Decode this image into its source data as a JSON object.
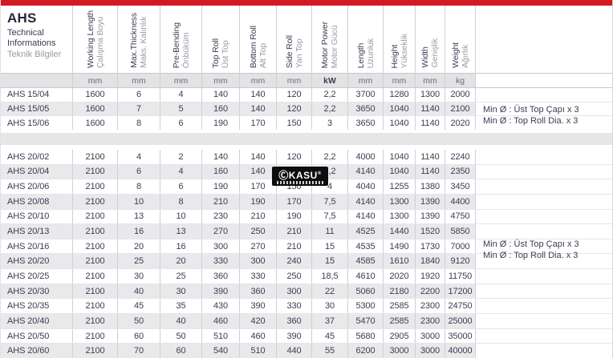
{
  "title": {
    "series": "AHS",
    "subtitle_en": "Technical Informations",
    "subtitle_tr": "Teknik Bilgiler"
  },
  "columns": [
    {
      "en": "Working Length",
      "tr": "Çalışma Boyu",
      "unit": "mm"
    },
    {
      "en": "Max.Thickness",
      "tr": "Maks. Kalınlık",
      "unit": "mm"
    },
    {
      "en": "Pre-Bending",
      "tr": "Önbüküm",
      "unit": "mm"
    },
    {
      "en": "Top Roll",
      "tr": "Üst Top",
      "unit": "mm"
    },
    {
      "en": "Bottom Roll",
      "tr": "Alt Top",
      "unit": "mm"
    },
    {
      "en": "Side Roll",
      "tr": "Yan Top",
      "unit": "mm"
    },
    {
      "en": "Motor Power",
      "tr": "Motor Gücü",
      "unit": "kW"
    },
    {
      "en": "Length",
      "tr": "Uzunluk",
      "unit": "mm"
    },
    {
      "en": "Height",
      "tr": "Yükseklik",
      "unit": "mm"
    },
    {
      "en": "Width",
      "tr": "Genişlik",
      "unit": "mm"
    },
    {
      "en": "Weight",
      "tr": "Ağırlık",
      "unit": "kg"
    }
  ],
  "groups": [
    {
      "note": [
        "Min Ø : Üst Top Çapı x 3",
        "Min Ø : Top Roll Dia. x 3"
      ],
      "rows": [
        {
          "model": "AHS 15/04",
          "values": [
            "1600",
            "6",
            "4",
            "140",
            "140",
            "120",
            "2,2",
            "3700",
            "1280",
            "1300",
            "2000"
          ]
        },
        {
          "model": "AHS 15/05",
          "values": [
            "1600",
            "7",
            "5",
            "160",
            "140",
            "120",
            "2,2",
            "3650",
            "1040",
            "1140",
            "2100"
          ]
        },
        {
          "model": "AHS 15/06",
          "values": [
            "1600",
            "8",
            "6",
            "190",
            "170",
            "150",
            "3",
            "3650",
            "1040",
            "1140",
            "2020"
          ]
        }
      ]
    },
    {
      "note": [
        "Min Ø : Üst Top Çapı x 3",
        "Min Ø : Top Roll Dia. x 3"
      ],
      "rows": [
        {
          "model": "AHS 20/02",
          "values": [
            "2100",
            "4",
            "2",
            "140",
            "140",
            "120",
            "2,2",
            "4000",
            "1040",
            "1140",
            "2240"
          ]
        },
        {
          "model": "AHS 20/04",
          "values": [
            "2100",
            "6",
            "4",
            "160",
            "140",
            "120",
            "2,2",
            "4140",
            "1040",
            "1140",
            "2350"
          ]
        },
        {
          "model": "AHS 20/06",
          "values": [
            "2100",
            "8",
            "6",
            "190",
            "170",
            "150",
            "4",
            "4040",
            "1255",
            "1380",
            "3450"
          ]
        },
        {
          "model": "AHS 20/08",
          "values": [
            "2100",
            "10",
            "8",
            "210",
            "190",
            "170",
            "7,5",
            "4140",
            "1300",
            "1390",
            "4400"
          ]
        },
        {
          "model": "AHS 20/10",
          "values": [
            "2100",
            "13",
            "10",
            "230",
            "210",
            "190",
            "7,5",
            "4140",
            "1300",
            "1390",
            "4750"
          ]
        },
        {
          "model": "AHS 20/13",
          "values": [
            "2100",
            "16",
            "13",
            "270",
            "250",
            "210",
            "11",
            "4525",
            "1440",
            "1520",
            "5850"
          ]
        },
        {
          "model": "AHS 20/16",
          "values": [
            "2100",
            "20",
            "16",
            "300",
            "270",
            "210",
            "15",
            "4535",
            "1490",
            "1730",
            "7000"
          ]
        },
        {
          "model": "AHS 20/20",
          "values": [
            "2100",
            "25",
            "20",
            "330",
            "300",
            "240",
            "15",
            "4585",
            "1610",
            "1840",
            "9120"
          ]
        },
        {
          "model": "AHS 20/25",
          "values": [
            "2100",
            "30",
            "25",
            "360",
            "330",
            "250",
            "18,5",
            "4610",
            "2020",
            "1920",
            "11750"
          ]
        },
        {
          "model": "AHS 20/30",
          "values": [
            "2100",
            "40",
            "30",
            "390",
            "360",
            "300",
            "22",
            "5060",
            "2180",
            "2200",
            "17200"
          ]
        },
        {
          "model": "AHS 20/35",
          "values": [
            "2100",
            "45",
            "35",
            "430",
            "390",
            "330",
            "30",
            "5300",
            "2585",
            "2300",
            "24750"
          ]
        },
        {
          "model": "AHS 20/40",
          "values": [
            "2100",
            "50",
            "40",
            "460",
            "420",
            "360",
            "37",
            "5470",
            "2585",
            "2300",
            "25000"
          ]
        },
        {
          "model": "AHS 20/50",
          "values": [
            "2100",
            "60",
            "50",
            "510",
            "460",
            "390",
            "45",
            "5680",
            "2905",
            "3000",
            "35000"
          ]
        },
        {
          "model": "AHS 20/60",
          "values": [
            "2100",
            "70",
            "60",
            "540",
            "510",
            "440",
            "55",
            "6200",
            "3000",
            "3000",
            "40000"
          ]
        }
      ]
    }
  ],
  "watermark": {
    "text": "ⒸKASU",
    "reg": "®"
  },
  "colors": {
    "accent_red": "#d31a22",
    "row_alt": "#e9e9ec",
    "units_bg": "#e3e3e6",
    "separator_band": "#e6e6e9",
    "border": "#cfcfd6",
    "text_dark": "#3c3c52",
    "text_gray": "#9a9aa4",
    "watermark_bg": "#0d0d0d"
  }
}
